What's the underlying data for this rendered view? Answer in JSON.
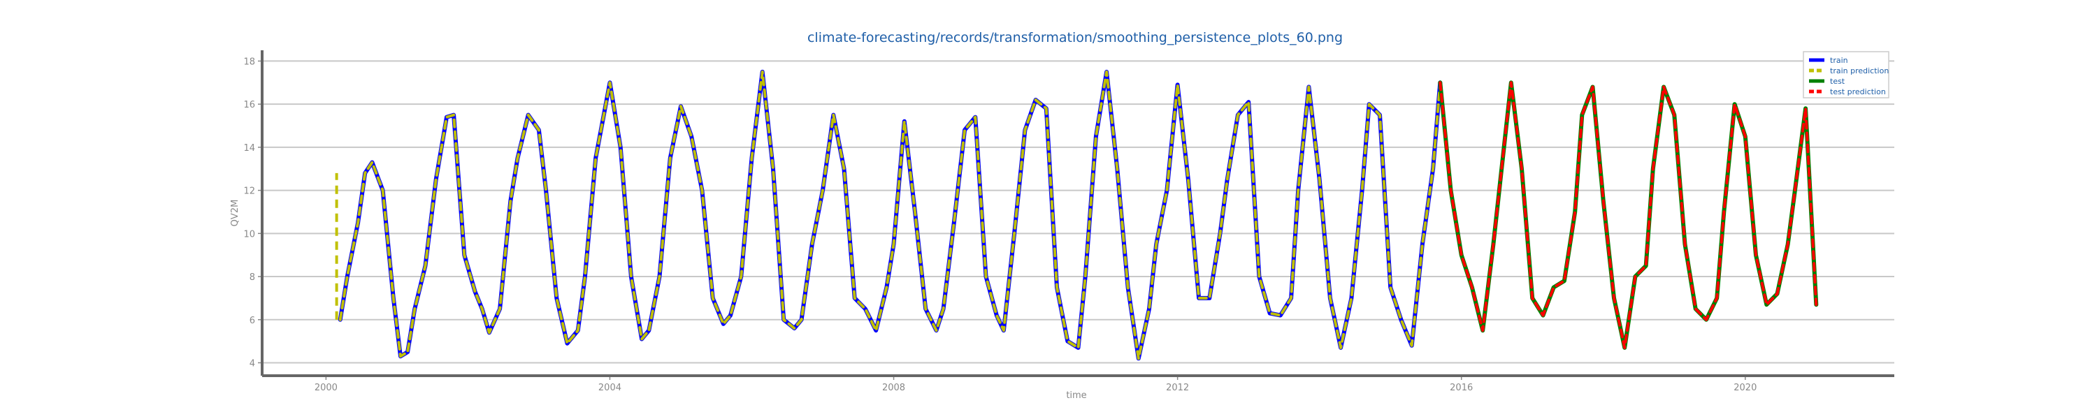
{
  "chart_data": {
    "type": "line",
    "title": "climate-forecasting/records/transformation/smoothing_persistence_plots_60.png",
    "xlabel": "time",
    "ylabel": "QV2M",
    "xlim": [
      1999.1,
      2022.1
    ],
    "ylim": [
      3.4,
      18.5
    ],
    "x_ticks": [
      2000,
      2004,
      2008,
      2012,
      2016,
      2020
    ],
    "y_ticks": [
      4,
      6,
      8,
      10,
      12,
      14,
      16,
      18
    ],
    "grid": "horizontal",
    "legend_position": "top-right",
    "series": [
      {
        "name": "train",
        "color": "#0000ff",
        "style": "solid",
        "x": [
          2000.2,
          2000.3,
          2000.45,
          2000.55,
          2000.65,
          2000.8,
          2000.95,
          2001.05,
          2001.15,
          2001.25,
          2001.4,
          2001.55,
          2001.7,
          2001.8,
          2001.95,
          2002.1,
          2002.2,
          2002.3,
          2002.45,
          2002.6,
          2002.7,
          2002.85,
          2003.0,
          2003.1,
          2003.25,
          2003.4,
          2003.55,
          2003.65,
          2003.8,
          2004.0,
          2004.15,
          2004.3,
          2004.45,
          2004.55,
          2004.7,
          2004.85,
          2005.0,
          2005.15,
          2005.3,
          2005.45,
          2005.6,
          2005.7,
          2005.85,
          2006.0,
          2006.15,
          2006.3,
          2006.45,
          2006.6,
          2006.7,
          2006.85,
          2007.0,
          2007.15,
          2007.3,
          2007.45,
          2007.6,
          2007.75,
          2007.9,
          2008.0,
          2008.15,
          2008.3,
          2008.45,
          2008.6,
          2008.7,
          2008.85,
          2009.0,
          2009.15,
          2009.3,
          2009.45,
          2009.55,
          2009.7,
          2009.85,
          2010.0,
          2010.15,
          2010.3,
          2010.45,
          2010.6,
          2010.7,
          2010.85,
          2011.0,
          2011.15,
          2011.3,
          2011.45,
          2011.6,
          2011.7,
          2011.85,
          2012.0,
          2012.15,
          2012.3,
          2012.45,
          2012.6,
          2012.7,
          2012.85,
          2013.0,
          2013.15,
          2013.3,
          2013.45,
          2013.6,
          2013.7,
          2013.85,
          2014.0,
          2014.15,
          2014.3,
          2014.45,
          2014.6,
          2014.7,
          2014.85,
          2015.0,
          2015.15,
          2015.3,
          2015.45,
          2015.6,
          2015.7
        ],
        "y": [
          6.0,
          8.0,
          10.5,
          12.8,
          13.3,
          12.0,
          7.0,
          4.3,
          4.5,
          6.5,
          8.5,
          12.5,
          15.4,
          15.5,
          9.0,
          7.3,
          6.5,
          5.4,
          6.5,
          11.5,
          13.5,
          15.5,
          14.8,
          12.0,
          7.0,
          4.9,
          5.5,
          8.0,
          13.5,
          17.0,
          14.0,
          8.0,
          5.1,
          5.5,
          8.0,
          13.5,
          15.9,
          14.5,
          12.0,
          7.0,
          5.8,
          6.2,
          8.0,
          13.5,
          17.5,
          13.0,
          6.0,
          5.6,
          6.0,
          9.5,
          12.0,
          15.5,
          13.0,
          7.0,
          6.5,
          5.5,
          7.5,
          9.5,
          15.2,
          11.0,
          6.5,
          5.5,
          6.5,
          10.5,
          14.8,
          15.4,
          8.0,
          6.2,
          5.5,
          10.0,
          14.8,
          16.2,
          15.8,
          7.5,
          5.0,
          4.7,
          8.0,
          14.5,
          17.5,
          13.0,
          7.5,
          4.2,
          6.5,
          9.5,
          12.0,
          16.9,
          12.5,
          7.0,
          7.0,
          10.0,
          12.5,
          15.5,
          16.1,
          8.0,
          6.3,
          6.2,
          7.0,
          12.0,
          16.8,
          12.5,
          7.0,
          4.7,
          7.0,
          12.0,
          16.0,
          15.5,
          7.5,
          6.0,
          4.8,
          9.5,
          13.0,
          17.0
        ]
      },
      {
        "name": "train prediction",
        "color": "#c0c000",
        "style": "dashed",
        "x": [
          2000.2,
          2000.3,
          2000.45,
          2000.55,
          2000.65,
          2000.8,
          2000.95,
          2001.05,
          2001.15,
          2001.25,
          2001.4,
          2001.55,
          2001.7,
          2001.8,
          2001.95,
          2002.1,
          2002.2,
          2002.3,
          2002.45,
          2002.6,
          2002.7,
          2002.85,
          2003.0,
          2003.1,
          2003.25,
          2003.4,
          2003.55,
          2003.65,
          2003.8,
          2004.0,
          2004.15,
          2004.3,
          2004.45,
          2004.55,
          2004.7,
          2004.85,
          2005.0,
          2005.15,
          2005.3,
          2005.45,
          2005.6,
          2005.7,
          2005.85,
          2006.0,
          2006.15,
          2006.3,
          2006.45,
          2006.6,
          2006.7,
          2006.85,
          2007.0,
          2007.15,
          2007.3,
          2007.45,
          2007.6,
          2007.75,
          2007.9,
          2008.0,
          2008.15,
          2008.3,
          2008.45,
          2008.6,
          2008.7,
          2008.85,
          2009.0,
          2009.15,
          2009.3,
          2009.45,
          2009.55,
          2009.7,
          2009.85,
          2010.0,
          2010.15,
          2010.3,
          2010.45,
          2010.6,
          2010.7,
          2010.85,
          2011.0,
          2011.15,
          2011.3,
          2011.45,
          2011.6,
          2011.7,
          2011.85,
          2012.0,
          2012.15,
          2012.3,
          2012.45,
          2012.6,
          2012.7,
          2012.85,
          2013.0,
          2013.15,
          2013.3,
          2013.45,
          2013.6,
          2013.7,
          2013.85,
          2014.0,
          2014.15,
          2014.3,
          2014.45,
          2014.6,
          2014.7,
          2014.85,
          2015.0,
          2015.15,
          2015.3,
          2015.45,
          2015.6,
          2015.7
        ],
        "y": [
          6.0,
          8.0,
          10.5,
          12.8,
          13.3,
          12.0,
          7.0,
          4.3,
          4.5,
          6.5,
          8.5,
          12.5,
          15.4,
          15.5,
          9.0,
          7.3,
          6.5,
          5.4,
          6.5,
          11.5,
          13.5,
          15.5,
          14.8,
          12.0,
          7.0,
          4.9,
          5.5,
          8.0,
          13.5,
          17.0,
          14.0,
          8.0,
          5.1,
          5.5,
          8.0,
          13.5,
          15.9,
          14.5,
          12.0,
          7.0,
          5.8,
          6.2,
          8.0,
          13.5,
          17.5,
          13.0,
          6.0,
          5.6,
          6.0,
          9.5,
          12.0,
          15.5,
          13.0,
          7.0,
          6.5,
          5.5,
          7.5,
          9.5,
          15.2,
          11.0,
          6.5,
          5.5,
          6.5,
          10.5,
          14.8,
          15.4,
          8.0,
          6.2,
          5.5,
          10.0,
          14.8,
          16.2,
          15.8,
          7.5,
          5.0,
          4.7,
          8.0,
          14.5,
          17.5,
          13.0,
          7.5,
          4.2,
          6.5,
          9.5,
          12.0,
          16.9,
          12.5,
          7.0,
          7.0,
          10.0,
          12.5,
          15.5,
          16.1,
          8.0,
          6.3,
          6.2,
          7.0,
          12.0,
          16.8,
          12.5,
          7.0,
          4.7,
          7.0,
          12.0,
          16.0,
          15.5,
          7.5,
          6.0,
          4.8,
          9.5,
          13.0,
          17.0
        ]
      },
      {
        "name": "test",
        "color": "#008000",
        "style": "solid",
        "x": [
          2015.7,
          2015.85,
          2016.0,
          2016.15,
          2016.3,
          2016.45,
          2016.6,
          2016.7,
          2016.85,
          2017.0,
          2017.15,
          2017.3,
          2017.45,
          2017.6,
          2017.7,
          2017.85,
          2018.0,
          2018.15,
          2018.3,
          2018.45,
          2018.6,
          2018.7,
          2018.85,
          2019.0,
          2019.15,
          2019.3,
          2019.45,
          2019.6,
          2019.7,
          2019.85,
          2020.0,
          2020.15,
          2020.3,
          2020.45,
          2020.6,
          2020.7,
          2020.85,
          2021.0
        ],
        "y": [
          17.0,
          12.0,
          9.0,
          7.5,
          5.5,
          9.5,
          14.0,
          17.0,
          13.0,
          7.0,
          6.2,
          7.5,
          7.8,
          11.0,
          15.5,
          16.8,
          11.5,
          7.0,
          4.7,
          8.0,
          8.5,
          13.0,
          16.8,
          15.5,
          9.5,
          6.5,
          6.0,
          7.0,
          11.0,
          16.0,
          14.5,
          9.0,
          6.7,
          7.2,
          9.5,
          12.0,
          15.8,
          6.7
        ]
      },
      {
        "name": "test prediction",
        "color": "#ff0000",
        "style": "dashed",
        "x": [
          2015.7,
          2015.85,
          2016.0,
          2016.15,
          2016.3,
          2016.45,
          2016.6,
          2016.7,
          2016.85,
          2017.0,
          2017.15,
          2017.3,
          2017.45,
          2017.6,
          2017.7,
          2017.85,
          2018.0,
          2018.15,
          2018.3,
          2018.45,
          2018.6,
          2018.7,
          2018.85,
          2019.0,
          2019.15,
          2019.3,
          2019.45,
          2019.6,
          2019.7,
          2019.85,
          2020.0,
          2020.15,
          2020.3,
          2020.45,
          2020.6,
          2020.7,
          2020.85,
          2021.0
        ],
        "y": [
          17.0,
          12.0,
          9.0,
          7.5,
          5.5,
          9.5,
          14.0,
          17.0,
          13.0,
          7.0,
          6.2,
          7.5,
          7.8,
          11.0,
          15.5,
          16.8,
          11.5,
          7.0,
          4.7,
          8.0,
          8.5,
          13.0,
          16.8,
          15.5,
          9.5,
          6.5,
          6.0,
          7.0,
          11.0,
          16.0,
          14.5,
          9.0,
          6.7,
          7.2,
          9.5,
          12.0,
          15.8,
          6.7
        ]
      }
    ],
    "annotations": [
      {
        "name": "train-prediction-start-marker",
        "color": "#c0c000",
        "style": "dashed",
        "x": [
          2000.15,
          2000.15
        ],
        "y": [
          6.0,
          12.8
        ]
      }
    ]
  }
}
